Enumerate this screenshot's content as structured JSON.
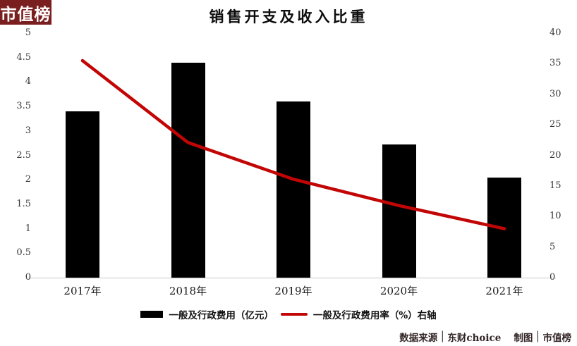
{
  "logo": "市值榜",
  "title": "销售开支及收入比重",
  "chart_data": {
    "type": "bar",
    "subtype": "bar+line combo, dual axis",
    "title": "销售开支及收入比重",
    "categories": [
      "2017年",
      "2018年",
      "2019年",
      "2020年",
      "2021年"
    ],
    "series": [
      {
        "name": "一般及行政费用（亿元）",
        "type": "bar",
        "axis": "left",
        "color": "#000000",
        "values": [
          3.4,
          4.4,
          3.6,
          2.72,
          2.05
        ]
      },
      {
        "name": "一般及行政费用率（%）右轴",
        "type": "line",
        "axis": "right",
        "color": "#c20505",
        "values": [
          35.5,
          22.1,
          16.1,
          11.8,
          8.0
        ]
      }
    ],
    "left_axis": {
      "min": 0,
      "max": 5,
      "step": 0.5,
      "ticks": [
        "5",
        "4.5",
        "4",
        "3.5",
        "3",
        "2.5",
        "2",
        "1.5",
        "1",
        "0.5",
        "0"
      ]
    },
    "right_axis": {
      "min": 0,
      "max": 40,
      "step": 5,
      "ticks": [
        "40",
        "35",
        "30",
        "25",
        "20",
        "15",
        "10",
        "5",
        "0"
      ]
    },
    "grid": false,
    "legend_position": "bottom"
  },
  "footer": {
    "source_label": "数据来源",
    "source_value": "东财choice",
    "maker_label": "制图",
    "maker_value": "市值榜",
    "divider": "│"
  }
}
